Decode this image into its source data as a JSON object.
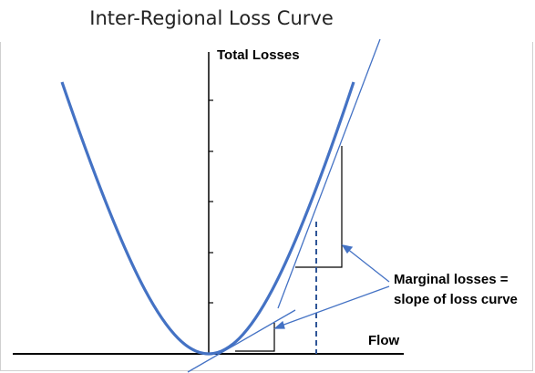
{
  "title": "Inter-Regional Loss Curve",
  "y_axis_label": "Total Losses",
  "x_axis_label": "Flow",
  "annotation": {
    "line1": "Marginal losses =",
    "line2": "slope of loss curve"
  },
  "colors": {
    "curve": "#4472C4",
    "axis": "#000000",
    "tangent": "#4472C4",
    "dashed": "#2F5597",
    "pointer": "#4472C4"
  },
  "chart_data": {
    "type": "line",
    "description_curve": "quadratic loss curve, minimum at origin",
    "x": [
      -160,
      -80,
      0,
      80,
      160
    ],
    "y": [
      1,
      0.25,
      0,
      0.25,
      1
    ],
    "grid": false
  }
}
